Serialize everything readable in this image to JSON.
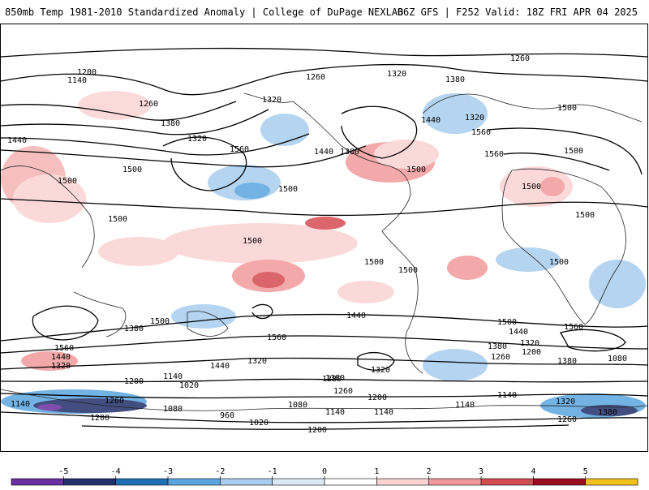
{
  "header": {
    "left": "850mb Temp 1981-2010 Standardized Anomaly | College of DuPage NEXLAB",
    "right": "06Z GFS | F252 Valid: 18Z FRI APR 04 2025"
  },
  "contour_labels": [
    "1260",
    "1200",
    "1140",
    "1320",
    "1380",
    "1260",
    "1320",
    "1440",
    "1320",
    "1380",
    "1440",
    "1560",
    "1260",
    "1500",
    "1320",
    "1560",
    "1440",
    "1380",
    "1500",
    "1560",
    "1500",
    "1500",
    "1500",
    "1500",
    "1500",
    "1500",
    "1500",
    "1500",
    "1500",
    "1500",
    "1500",
    "1500",
    "1500",
    "1440",
    "1380",
    "1560",
    "1560",
    "1440",
    "1320",
    "1380",
    "1320",
    "1260",
    "1200",
    "1080",
    "1560",
    "1440",
    "1320",
    "1380",
    "1440",
    "1200",
    "1140",
    "1320",
    "1380",
    "1260",
    "1200",
    "1140",
    "1140",
    "1020",
    "1080",
    "1140",
    "1260",
    "1080",
    "1200",
    "960",
    "1020",
    "1200",
    "1140",
    "1320",
    "1380",
    "1260",
    "1140",
    "1380"
  ],
  "colorbar": {
    "ticks": [
      "-5",
      "-4",
      "-3",
      "-2",
      "-1",
      "0",
      "1",
      "2",
      "3",
      "4",
      "5"
    ],
    "colors": [
      "#6a2fa0",
      "#23306b",
      "#1f6fb8",
      "#5aa6e0",
      "#a8cdee",
      "#dbe9f6",
      "#ffffff",
      "#fbd3d3",
      "#f1999b",
      "#d44b52",
      "#9a0d1f",
      "#f2c21b"
    ]
  }
}
